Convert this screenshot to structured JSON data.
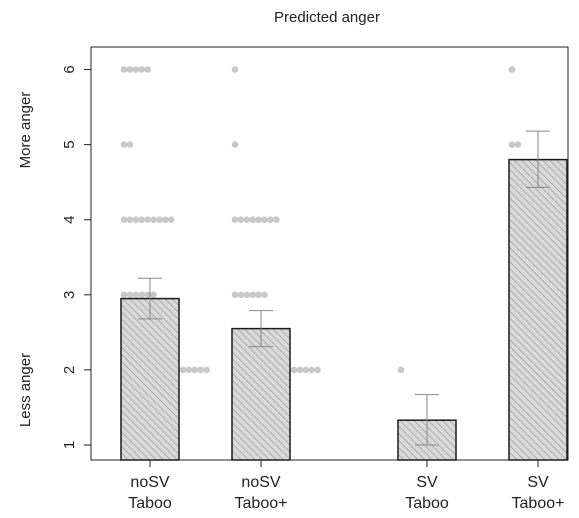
{
  "chart_data": {
    "type": "bar",
    "title": "Predicted anger",
    "categories": [
      {
        "line1": "noSV",
        "line2": "Taboo"
      },
      {
        "line1": "noSV",
        "line2": "Taboo+"
      },
      {
        "line1": "SV",
        "line2": "Taboo"
      },
      {
        "line1": "SV",
        "line2": "Taboo+"
      }
    ],
    "values": [
      2.95,
      2.55,
      1.33,
      4.8
    ],
    "error_low": [
      2.68,
      2.31,
      1.0,
      4.43
    ],
    "error_high": [
      3.22,
      2.79,
      1.67,
      5.18
    ],
    "ylim": [
      0.8,
      6.3
    ],
    "yticks": [
      "1",
      "2",
      "3",
      "4",
      "5",
      "6"
    ],
    "ylabel_top": "More anger",
    "ylabel_bottom": "Less anger",
    "bar_fill": "#d9d9d9",
    "bar_hatch": "#9a9a9a",
    "bar_edge": "#1a1a1a",
    "dot_color": "#c8c8c8",
    "error_color": "#888888",
    "points": [
      {
        "group": 0,
        "y": 6,
        "count": 5
      },
      {
        "group": 0,
        "y": 5,
        "count": 2
      },
      {
        "group": 0,
        "y": 4,
        "count": 9
      },
      {
        "group": 0,
        "y": 3,
        "count": 6
      },
      {
        "group": 0,
        "y": 2,
        "count": 15
      },
      {
        "group": 0,
        "y": 1,
        "count": 9
      },
      {
        "group": 1,
        "y": 6,
        "count": 1
      },
      {
        "group": 1,
        "y": 5,
        "count": 1
      },
      {
        "group": 1,
        "y": 4,
        "count": 8
      },
      {
        "group": 1,
        "y": 3,
        "count": 6
      },
      {
        "group": 1,
        "y": 2,
        "count": 15
      },
      {
        "group": 1,
        "y": 1,
        "count": 8
      },
      {
        "group": 2,
        "y": 2,
        "count": 1
      },
      {
        "group": 2,
        "y": 1,
        "count": 2
      },
      {
        "group": 3,
        "y": 6,
        "count": 1
      },
      {
        "group": 3,
        "y": 5,
        "count": 2
      },
      {
        "group": 3,
        "y": 4,
        "count": 2
      }
    ]
  }
}
